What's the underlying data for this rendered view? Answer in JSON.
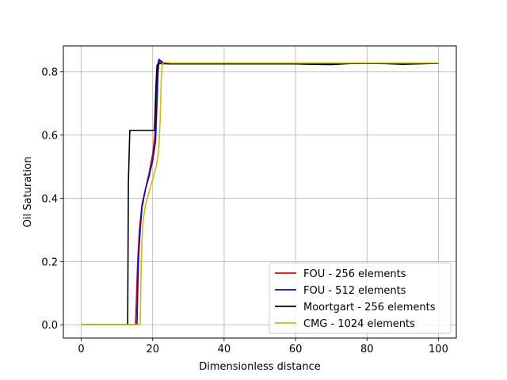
{
  "chart_data": {
    "type": "line",
    "xlabel": "Dimensionless distance",
    "ylabel": "Oil Saturation",
    "xlim": [
      -5,
      105
    ],
    "ylim": [
      -0.042,
      0.882
    ],
    "xticks": [
      0,
      20,
      40,
      60,
      80,
      100
    ],
    "xtick_labels": [
      "0",
      "20",
      "40",
      "60",
      "80",
      "100"
    ],
    "yticks": [
      0.0,
      0.2,
      0.4,
      0.6,
      0.8
    ],
    "ytick_labels": [
      "0.0",
      "0.2",
      "0.4",
      "0.6",
      "0.8"
    ],
    "grid": true,
    "legend_position": "lower-right",
    "series": [
      {
        "name": "FOU - 256 elements",
        "color": "#e00000",
        "x": [
          0,
          5,
          10,
          15.2,
          15.8,
          16.3,
          17,
          18,
          19,
          20,
          20.6,
          21.0,
          21.3,
          21.6,
          22,
          23,
          25,
          30,
          40,
          50,
          60,
          70,
          80,
          90,
          100
        ],
        "y": [
          0,
          0,
          0,
          0,
          0.2,
          0.3,
          0.38,
          0.43,
          0.48,
          0.54,
          0.6,
          0.7,
          0.8,
          0.835,
          0.832,
          0.828,
          0.827,
          0.826,
          0.826,
          0.826,
          0.826,
          0.826,
          0.827,
          0.826,
          0.827
        ]
      },
      {
        "name": "FOU - 512 elements",
        "color": "#0000e0",
        "x": [
          0,
          5,
          10,
          15.6,
          16.0,
          16.5,
          17,
          18,
          19,
          20,
          20.8,
          21.2,
          21.5,
          21.8,
          22.2,
          23,
          25,
          30,
          40,
          50,
          60,
          70,
          80,
          90,
          100
        ],
        "y": [
          0,
          0,
          0,
          0,
          0.2,
          0.3,
          0.37,
          0.43,
          0.47,
          0.52,
          0.58,
          0.7,
          0.8,
          0.84,
          0.835,
          0.829,
          0.827,
          0.826,
          0.826,
          0.826,
          0.826,
          0.826,
          0.827,
          0.826,
          0.827
        ]
      },
      {
        "name": "Moortgart - 256 elements",
        "color": "#000000",
        "x": [
          0,
          5,
          10,
          13.0,
          13.2,
          13.6,
          15,
          18,
          20.5,
          20.9,
          21.2,
          21.5,
          22,
          25,
          30,
          40,
          50,
          60,
          65,
          70,
          75,
          80,
          85,
          90,
          100
        ],
        "y": [
          0,
          0,
          0,
          0,
          0.45,
          0.615,
          0.615,
          0.615,
          0.615,
          0.75,
          0.82,
          0.826,
          0.826,
          0.825,
          0.825,
          0.825,
          0.825,
          0.825,
          0.824,
          0.823,
          0.826,
          0.827,
          0.826,
          0.824,
          0.827
        ]
      },
      {
        "name": "CMG - 1024 elements",
        "color": "#c8c000",
        "x": [
          0,
          5,
          10,
          16.5,
          16.8,
          17.2,
          18,
          19,
          20,
          21,
          21.7,
          22.1,
          22.4,
          22.7,
          23.2,
          25,
          30,
          40,
          50,
          60,
          70,
          80,
          90,
          100
        ],
        "y": [
          0,
          0,
          0,
          0,
          0.2,
          0.32,
          0.38,
          0.42,
          0.46,
          0.5,
          0.55,
          0.65,
          0.78,
          0.825,
          0.83,
          0.828,
          0.828,
          0.828,
          0.828,
          0.828,
          0.828,
          0.828,
          0.828,
          0.828
        ]
      }
    ]
  }
}
